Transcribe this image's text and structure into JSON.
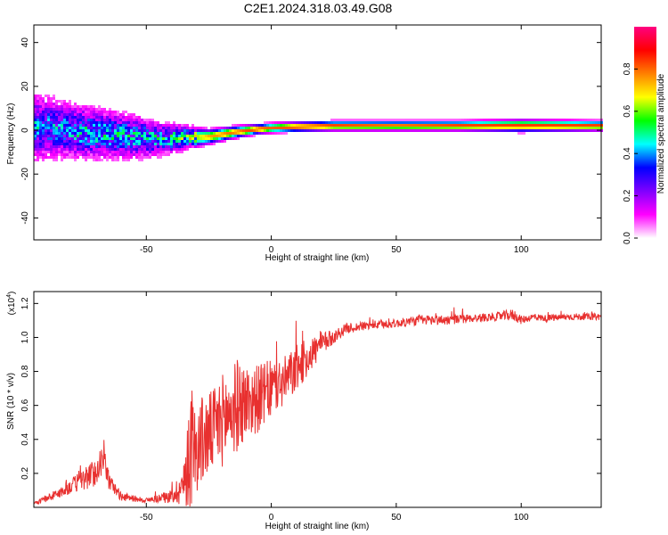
{
  "title": "C2E1.2024.318.03.49.G08",
  "colors": {
    "snr_line": "#e8302f",
    "background": "#ffffff",
    "axis": "#000000"
  },
  "chart_data": [
    {
      "type": "heatmap",
      "xlabel": "Height of straight line (km)",
      "ylabel": "Frequency (Hz)",
      "xlim": [
        -95,
        132
      ],
      "ylim": [
        -50,
        48
      ],
      "xticks": [
        -50,
        0,
        50,
        100
      ],
      "yticks": [
        -40,
        -20,
        0,
        20,
        40
      ],
      "colorbar": {
        "label": "Normalized spectral amplitude",
        "range": [
          0.0,
          1.0
        ],
        "ticks": [
          0.0,
          0.2,
          0.4,
          0.6,
          0.8
        ],
        "colormap": [
          "#ffffff",
          "#ff00ff",
          "#7f00ff",
          "#0000ff",
          "#00ffff",
          "#00ff00",
          "#ffff00",
          "#ff8000",
          "#ff0000",
          "#ff0080"
        ]
      },
      "ridge": {
        "x": [
          -95,
          -85,
          -75,
          -65,
          -55,
          -45,
          -35,
          -25,
          -15,
          -5,
          0,
          10,
          25,
          50,
          75,
          100,
          132
        ],
        "freq_hz": [
          1.5,
          0.5,
          -1.0,
          -2.0,
          -3.0,
          -4.0,
          -3.5,
          -3.0,
          -1.0,
          0.5,
          1.0,
          1.5,
          2.0,
          2.0,
          2.0,
          2.0,
          2.0
        ],
        "amplitude": [
          0.35,
          0.35,
          0.4,
          0.4,
          0.4,
          0.4,
          0.5,
          0.75,
          0.8,
          0.85,
          0.8,
          0.85,
          0.85,
          0.8,
          0.85,
          0.85,
          0.85
        ],
        "spread_hz": [
          14,
          12,
          11,
          10,
          9,
          7,
          5,
          3,
          2.5,
          2,
          2,
          2,
          2,
          2,
          2,
          2.5,
          2
        ]
      }
    },
    {
      "type": "line",
      "xlabel": "Height of straight line (km)",
      "ylabel": "SNR (10 * v/v)",
      "multiplier": "(x10",
      "multiplier_exp": "4",
      "multiplier_close": ")",
      "xlim": [
        -95,
        132
      ],
      "ylim": [
        0,
        1.27
      ],
      "xticks": [
        -50,
        0,
        50,
        100
      ],
      "yticks": [
        0.2,
        0.4,
        0.6,
        0.8,
        1.0,
        1.2
      ],
      "series": [
        {
          "x": [
            -95,
            -90,
            -85,
            -80,
            -75,
            -70,
            -67,
            -65,
            -60,
            -55,
            -50,
            -45,
            -40,
            -35,
            -33,
            -30,
            -28,
            -25,
            -22,
            -20,
            -15,
            -13,
            -10,
            -5,
            0,
            5,
            10,
            15,
            20,
            25,
            30,
            40,
            50,
            60,
            70,
            80,
            90,
            97,
            100,
            105,
            110,
            120,
            132
          ],
          "values": [
            0.02,
            0.05,
            0.08,
            0.12,
            0.16,
            0.2,
            0.3,
            0.15,
            0.06,
            0.05,
            0.04,
            0.05,
            0.06,
            0.12,
            0.3,
            0.32,
            0.36,
            0.4,
            0.45,
            0.48,
            0.55,
            0.58,
            0.6,
            0.62,
            0.68,
            0.72,
            0.8,
            0.88,
            0.95,
            1.0,
            1.05,
            1.07,
            1.08,
            1.1,
            1.1,
            1.11,
            1.12,
            1.13,
            1.1,
            1.12,
            1.11,
            1.12,
            1.12
          ],
          "noise": [
            0.02,
            0.04,
            0.06,
            0.09,
            0.14,
            0.16,
            0.2,
            0.1,
            0.05,
            0.04,
            0.03,
            0.05,
            0.08,
            0.25,
            0.75,
            0.5,
            0.55,
            0.5,
            0.5,
            0.55,
            0.55,
            0.55,
            0.45,
            0.4,
            0.35,
            0.3,
            0.28,
            0.22,
            0.15,
            0.08,
            0.06,
            0.05,
            0.05,
            0.06,
            0.06,
            0.05,
            0.05,
            0.07,
            0.05,
            0.04,
            0.04,
            0.04,
            0.04
          ]
        }
      ]
    }
  ]
}
